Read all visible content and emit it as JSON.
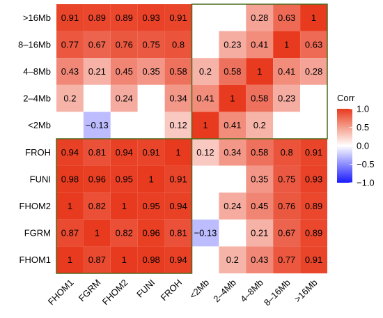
{
  "chart_data": {
    "type": "heatmap",
    "rows_top_to_bottom": [
      ">16Mb",
      "8–16Mb",
      "4–8Mb",
      "2–4Mb",
      "<2Mb",
      "FROH",
      "FUNI",
      "FHOM2",
      "FGRM",
      "FHOM1"
    ],
    "columns": [
      "FHOM1",
      "FGRM",
      "FHOM2",
      "FUNI",
      "FROH",
      "<2Mb",
      "2–4Mb",
      "4–8Mb",
      "8–16Mb",
      ">16Mb"
    ],
    "values": [
      [
        0.91,
        0.89,
        0.89,
        0.93,
        0.91,
        null,
        null,
        0.28,
        0.63,
        1
      ],
      [
        0.77,
        0.67,
        0.76,
        0.75,
        0.8,
        null,
        0.23,
        0.41,
        1,
        0.63
      ],
      [
        0.43,
        0.21,
        0.45,
        0.35,
        0.58,
        0.2,
        0.58,
        1,
        0.41,
        0.28
      ],
      [
        0.2,
        null,
        0.24,
        null,
        0.34,
        0.41,
        1,
        0.58,
        0.23,
        null
      ],
      [
        null,
        -0.13,
        null,
        null,
        0.12,
        1,
        0.41,
        0.2,
        null,
        null
      ],
      [
        0.94,
        0.81,
        0.94,
        0.91,
        1,
        0.12,
        0.34,
        0.58,
        0.8,
        0.91
      ],
      [
        0.98,
        0.96,
        0.95,
        1,
        0.91,
        null,
        null,
        0.35,
        0.75,
        0.93
      ],
      [
        1,
        0.82,
        1,
        0.95,
        0.94,
        null,
        0.24,
        0.45,
        0.76,
        0.89
      ],
      [
        0.87,
        1,
        0.82,
        0.96,
        0.81,
        -0.13,
        null,
        0.21,
        0.67,
        0.89
      ],
      [
        1,
        0.87,
        1,
        0.98,
        0.94,
        null,
        0.2,
        0.43,
        0.77,
        0.91
      ]
    ],
    "legend": {
      "title": "Corr",
      "ticks": [
        "1.0",
        "0.5",
        "0.0",
        "-0.5",
        "-1.0"
      ],
      "tick_values": [
        1,
        0.5,
        0,
        -0.5,
        -1
      ],
      "range": [
        -1,
        1
      ],
      "colors": {
        "low": "#1a1aff",
        "mid": "#ffffff",
        "high": "#e83a1e"
      }
    },
    "highlight_border_color": "#4a6a1a",
    "grid": false
  }
}
